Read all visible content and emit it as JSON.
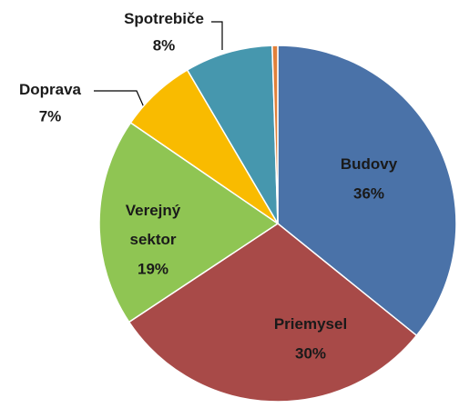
{
  "chart_data": {
    "type": "pie",
    "categories": [
      "Budovy",
      "Priemysel",
      "Verejný sektor",
      "Doprava",
      "Spotrebiče",
      null
    ],
    "values": [
      36,
      30,
      19,
      7,
      8,
      0.5
    ],
    "value_labels": [
      "36%",
      "30%",
      "19%",
      "7%",
      "8%",
      null
    ],
    "colors": [
      "#4a72a8",
      "#a84a48",
      "#8fc553",
      "#f9bb00",
      "#4697ae",
      "#e0803a"
    ]
  }
}
